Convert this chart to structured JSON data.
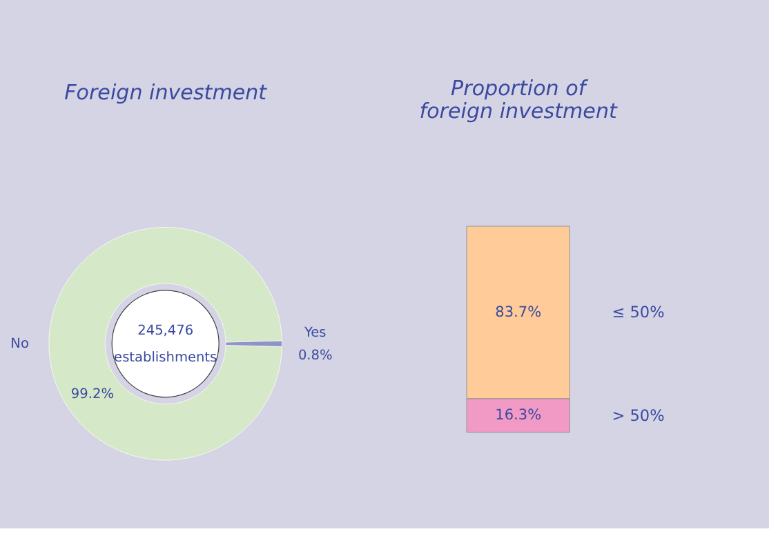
{
  "chart_data": [
    {
      "type": "donut",
      "title": "Foreign investment",
      "categories": [
        "No",
        "Yes"
      ],
      "values": [
        99.2,
        0.8
      ],
      "colors": [
        "#d5e8c8",
        "#8f93c8"
      ],
      "value_labels": [
        "99.2%",
        "0.8%"
      ],
      "annotations": [
        "245,476",
        "establishments"
      ]
    },
    {
      "type": "bar",
      "stacked": true,
      "title": "Proportion of\nforeign investment",
      "categories": [
        null
      ],
      "series": [
        {
          "name": "> 50%",
          "color": "#f29ac6",
          "values": [
            16.3
          ],
          "value_labels": [
            "16.3%"
          ]
        },
        {
          "name": "≤ 50%",
          "color": "#ffcc99",
          "values": [
            83.7
          ],
          "value_labels": [
            "83.7%"
          ]
        }
      ]
    }
  ]
}
